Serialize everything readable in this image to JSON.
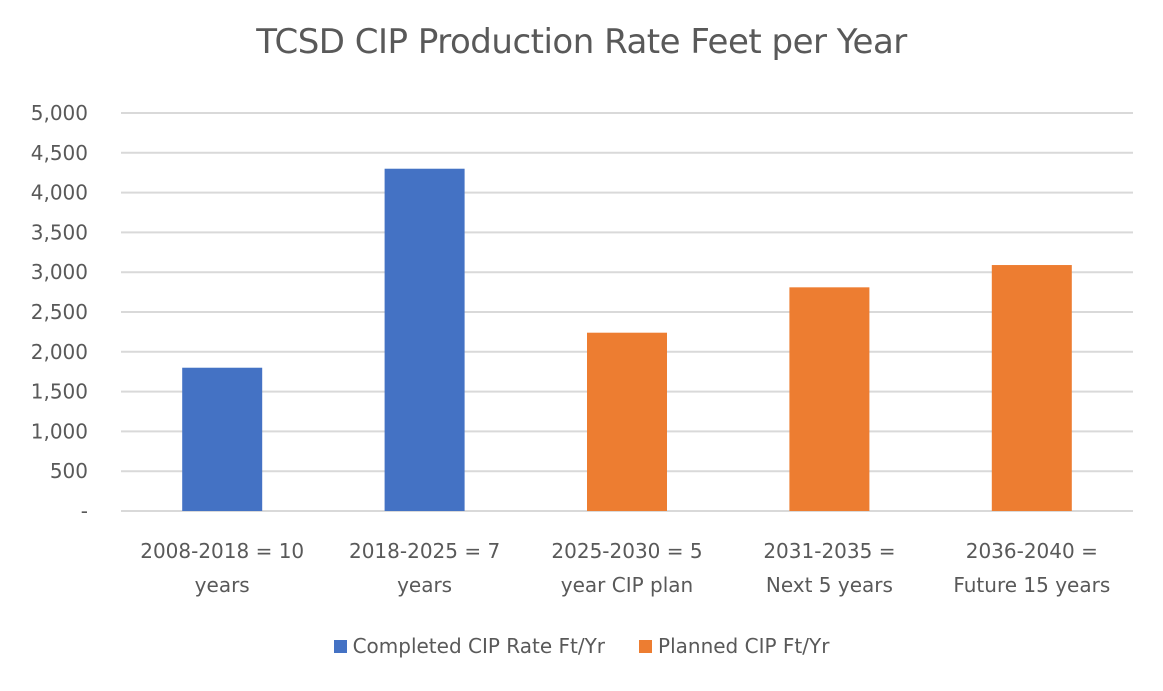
{
  "chart_data": {
    "type": "bar",
    "title": "TCSD CIP Production Rate Feet per Year",
    "xlabel": "",
    "ylabel": "",
    "ylim": [
      0,
      5000
    ],
    "yticks": [
      0,
      500,
      1000,
      1500,
      2000,
      2500,
      3000,
      3500,
      4000,
      4500,
      5000
    ],
    "ytick_labels": [
      "-",
      "500",
      "1,000",
      "1,500",
      "2,000",
      "2,500",
      "3,000",
      "3,500",
      "4,000",
      "4,500",
      "5,000"
    ],
    "grid": true,
    "legend_position": "bottom",
    "categories": [
      [
        "2008-2018 = 10",
        "years"
      ],
      [
        "2018-2025 = 7",
        "years"
      ],
      [
        "2025-2030 = 5",
        "year CIP plan"
      ],
      [
        "2031-2035 =",
        "Next 5 years"
      ],
      [
        "2036-2040 =",
        "Future 15 years"
      ]
    ],
    "series": [
      {
        "name": "Completed CIP Rate Ft/Yr",
        "color": "#4472C4",
        "values": [
          1800,
          4300,
          null,
          null,
          null
        ]
      },
      {
        "name": "Planned CIP Ft/Yr",
        "color": "#ED7D31",
        "values": [
          null,
          null,
          2240,
          2810,
          3090
        ]
      }
    ]
  }
}
